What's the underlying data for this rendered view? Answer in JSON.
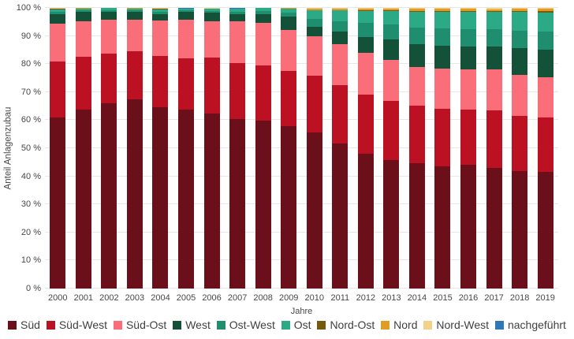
{
  "chart_data": {
    "type": "bar",
    "variant": "stacked-100-percent",
    "title": "",
    "xlabel": "Jahre",
    "ylabel": "Anteil Anlagenzubau",
    "ylim": [
      0,
      100
    ],
    "grid": true,
    "legend_position": "bottom",
    "y_tick_values": [
      0,
      10,
      20,
      30,
      40,
      50,
      60,
      70,
      80,
      90,
      100
    ],
    "y_tick_labels": [
      "0 %",
      "10 %",
      "20 %",
      "30 %",
      "40 %",
      "50 %",
      "60 %",
      "70 %",
      "80 %",
      "90 %",
      "100 %"
    ],
    "categories": [
      "2000",
      "2001",
      "2002",
      "2003",
      "2004",
      "2005",
      "2006",
      "2007",
      "2008",
      "2009",
      "2010",
      "2011",
      "2012",
      "2013",
      "2014",
      "2015",
      "2016",
      "2017",
      "2018",
      "2019"
    ],
    "series": [
      {
        "name": "Süd",
        "color": "#6B0F1A",
        "values": [
          61.0,
          63.8,
          66.1,
          67.4,
          64.6,
          63.7,
          62.4,
          60.3,
          59.7,
          58.0,
          55.5,
          51.7,
          48.0,
          45.7,
          44.6,
          43.6,
          44.0,
          43.1,
          41.8,
          41.5
        ]
      },
      {
        "name": "Süd-West",
        "color": "#BB1122",
        "values": [
          19.9,
          18.9,
          17.5,
          17.2,
          18.4,
          18.3,
          19.8,
          20.0,
          19.9,
          19.5,
          20.3,
          20.7,
          21.1,
          21.2,
          20.5,
          20.5,
          19.9,
          20.4,
          19.8,
          19.5
        ]
      },
      {
        "name": "Süd-Ost",
        "color": "#FA6E79",
        "values": [
          13.5,
          12.5,
          12.3,
          11.1,
          12.4,
          13.7,
          13.1,
          14.8,
          15.0,
          14.6,
          14.1,
          14.7,
          15.0,
          14.6,
          13.8,
          14.2,
          14.2,
          14.5,
          14.5,
          14.2
        ]
      },
      {
        "name": "West",
        "color": "#135239",
        "values": [
          3.4,
          3.3,
          2.8,
          2.8,
          2.5,
          2.8,
          3.0,
          2.8,
          3.1,
          4.9,
          3.3,
          4.5,
          5.6,
          7.3,
          8.2,
          8.3,
          8.2,
          8.2,
          9.7,
          9.8
        ]
      },
      {
        "name": "Ost-West",
        "color": "#1E8E6E",
        "values": [
          0.9,
          0.6,
          0.6,
          0.55,
          0.75,
          0.55,
          0.65,
          0.85,
          1.1,
          1.3,
          2.9,
          3.7,
          4.9,
          5.4,
          5.9,
          6.0,
          6.1,
          6.1,
          6.2,
          6.6
        ]
      },
      {
        "name": "Ost",
        "color": "#2BAA85",
        "values": [
          0.7,
          0.6,
          0.6,
          0.55,
          0.75,
          0.55,
          0.65,
          0.85,
          1.1,
          1.3,
          3.0,
          3.8,
          4.3,
          4.7,
          5.6,
          6.0,
          6.2,
          6.2,
          6.5,
          6.7
        ]
      },
      {
        "name": "Nord-Ost",
        "color": "#755A0B",
        "values": [
          0.3,
          0.1,
          0.1,
          0.2,
          0.3,
          0.1,
          0.2,
          0.2,
          0.05,
          0.2,
          0.2,
          0.2,
          0.3,
          0.3,
          0.4,
          0.4,
          0.4,
          0.4,
          0.5,
          0.6
        ]
      },
      {
        "name": "Nord",
        "color": "#E39B25",
        "values": [
          0.1,
          0.1,
          0.0,
          0.1,
          0.1,
          0.0,
          0.05,
          0.0,
          0.02,
          0.1,
          0.4,
          0.4,
          0.5,
          0.5,
          0.6,
          0.6,
          0.6,
          0.7,
          0.7,
          0.8
        ]
      },
      {
        "name": "Nord-West",
        "color": "#F4D188",
        "values": [
          0.1,
          0.05,
          0.0,
          0.1,
          0.1,
          0.0,
          0.05,
          0.0,
          0.02,
          0.0,
          0.2,
          0.2,
          0.2,
          0.2,
          0.3,
          0.3,
          0.3,
          0.3,
          0.3,
          0.3
        ]
      },
      {
        "name": "nachgeführt",
        "color": "#2E79B5",
        "values": [
          0.1,
          0.05,
          0.0,
          0.0,
          0.1,
          0.3,
          0.1,
          0.2,
          0.01,
          0.1,
          0.1,
          0.1,
          0.1,
          0.1,
          0.1,
          0.1,
          0.1,
          0.1,
          0.0,
          0.0
        ]
      }
    ]
  }
}
